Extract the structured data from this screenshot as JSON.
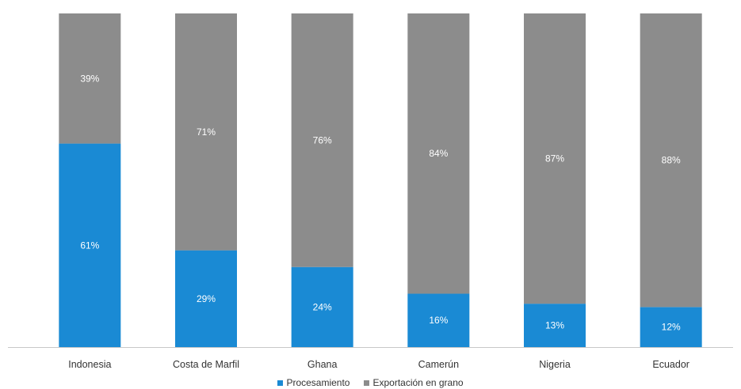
{
  "chart_data": {
    "type": "bar",
    "stacked": true,
    "title": "",
    "xlabel": "",
    "ylabel": "",
    "ylim": [
      0,
      100
    ],
    "grid": false,
    "legend_position": "bottom",
    "categories": [
      "Indonesia",
      "Costa de Marfil",
      "Ghana",
      "Camerún",
      "Nigeria",
      "Ecuador"
    ],
    "series": [
      {
        "name": "Procesamiento",
        "color": "#1a8ad4",
        "values": [
          61,
          29,
          24,
          16,
          13,
          12
        ],
        "labels": [
          "61%",
          "29%",
          "24%",
          "16%",
          "13%",
          "12%"
        ]
      },
      {
        "name": "Exportación en grano",
        "color": "#8c8c8c",
        "values": [
          39,
          71,
          76,
          84,
          87,
          88
        ],
        "labels": [
          "39%",
          "71%",
          "76%",
          "84%",
          "87%",
          "88%"
        ]
      }
    ]
  }
}
